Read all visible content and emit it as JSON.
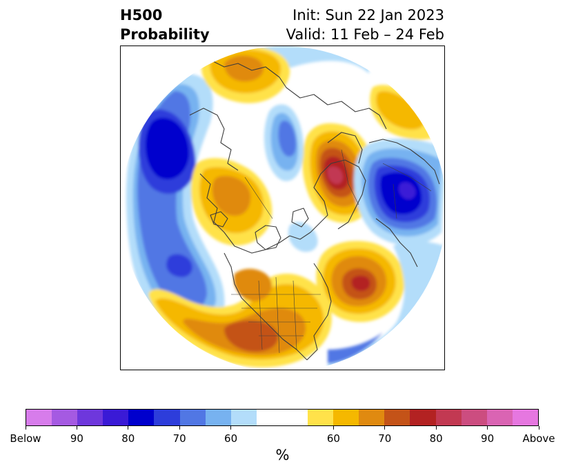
{
  "header": {
    "title_line1": "H500",
    "title_line2": "Probability",
    "init": "Init: Sun 22 Jan 2023",
    "valid": "Valid: 11 Feb – 24 Feb"
  },
  "colorbar": {
    "colors": [
      "#d77ceb",
      "#a55ae2",
      "#6e37dc",
      "#3a1ad6",
      "#0000cd",
      "#2d3ddb",
      "#5177e4",
      "#77b2f0",
      "#b3ddfa",
      "#ffffff",
      "#ffffff",
      "#ffe24a",
      "#f5b800",
      "#e08a10",
      "#c45318",
      "#b32222",
      "#c23952",
      "#cc4d80",
      "#da64b3",
      "#e677e0"
    ],
    "tick_labels": [
      "Below",
      "90",
      "80",
      "70",
      "60",
      "60",
      "70",
      "80",
      "90",
      "Above"
    ],
    "unit": "%"
  }
}
